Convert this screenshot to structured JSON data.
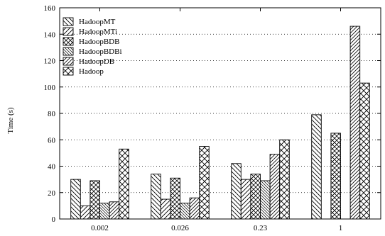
{
  "chart_data": {
    "type": "bar",
    "title": "",
    "xlabel": "",
    "ylabel": "Time (s)",
    "ylim": [
      0,
      160
    ],
    "yticks": [
      0,
      20,
      40,
      60,
      80,
      100,
      120,
      140,
      160
    ],
    "grid": "horizontal dotted",
    "legend_position": "top-left",
    "categories": [
      "0.002",
      "0.026",
      "0.23",
      "1"
    ],
    "series": [
      {
        "name": "HadoopMT",
        "values": [
          30,
          34,
          42,
          79
        ],
        "pattern": "diag-back"
      },
      {
        "name": "HadoopMTi",
        "values": [
          10,
          15,
          30,
          0
        ],
        "pattern": "diag-fwd"
      },
      {
        "name": "HadoopBDB",
        "values": [
          29,
          31,
          34,
          65
        ],
        "pattern": "crosshatch"
      },
      {
        "name": "HadoopBDBi",
        "values": [
          12,
          12,
          29,
          0
        ],
        "pattern": "diag-back-dense"
      },
      {
        "name": "HadoopDB",
        "values": [
          13,
          16,
          49,
          146
        ],
        "pattern": "diag-fwd-dense"
      },
      {
        "name": "Hadoop",
        "values": [
          53,
          55,
          60,
          103
        ],
        "pattern": "crosshatch-wide"
      }
    ]
  }
}
